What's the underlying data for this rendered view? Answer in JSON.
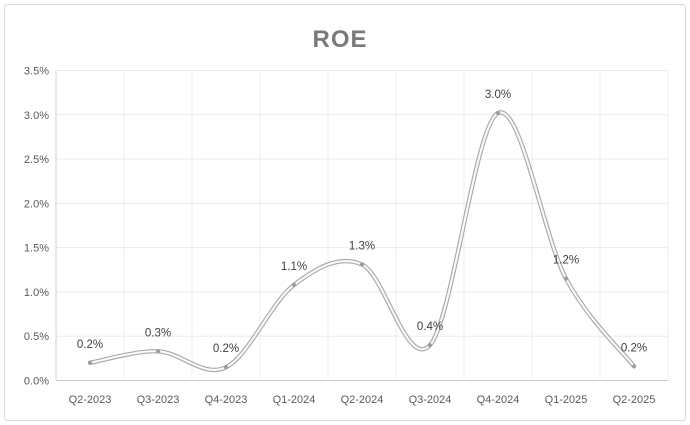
{
  "window": {
    "background": "#ffffff",
    "border_color": "#d9d9d9"
  },
  "chart_data": {
    "type": "line",
    "title": "ROE",
    "categories": [
      "Q2-2023",
      "Q3-2023",
      "Q4-2023",
      "Q1-2024",
      "Q2-2024",
      "Q3-2024",
      "Q4-2024",
      "Q1-2025",
      "Q2-2025"
    ],
    "series": [
      {
        "name": "ROE",
        "values": [
          0.2,
          0.3,
          0.2,
          1.1,
          1.3,
          0.4,
          3.0,
          1.2,
          0.2
        ],
        "values_precise_pct": [
          0.2,
          0.33,
          0.15,
          1.08,
          1.31,
          0.4,
          3.02,
          1.15,
          0.16
        ],
        "point_labels": [
          "0.2%",
          "0.3%",
          "0.2%",
          "1.1%",
          "1.3%",
          "0.4%",
          "3.0%",
          "1.2%",
          "0.2%"
        ]
      }
    ],
    "xlabel": "",
    "ylabel": "",
    "ylim": [
      0,
      3.5
    ],
    "y_tick_step": 0.5,
    "y_tick_labels": [
      "0.0%",
      "0.5%",
      "1.0%",
      "1.5%",
      "2.0%",
      "2.5%",
      "3.0%",
      "3.5%"
    ],
    "grid": true,
    "smooth_line": true,
    "legend_position": "none",
    "colors": {
      "line_outer": "#a9a9a9",
      "line_inner": "#fafafa",
      "marker": "#9d9d9d",
      "gridline": "#ececec",
      "left_axis_line": "#d6d6d6",
      "bottom_axis_line": "#c9c9c9",
      "tick_text": "#595959",
      "data_label_text": "#404040",
      "title_text": "#7a7a7a"
    }
  }
}
